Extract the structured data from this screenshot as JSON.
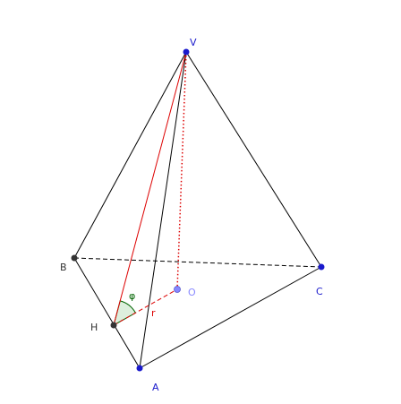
{
  "points": [
    {
      "label": "V"
    },
    {
      "label": "B"
    },
    {
      "label": "C"
    },
    {
      "label": "H"
    },
    {
      "label": "A"
    },
    {
      "label": "O"
    }
  ],
  "angle": {
    "label": "φ"
  },
  "segment": {
    "label": "r"
  }
}
